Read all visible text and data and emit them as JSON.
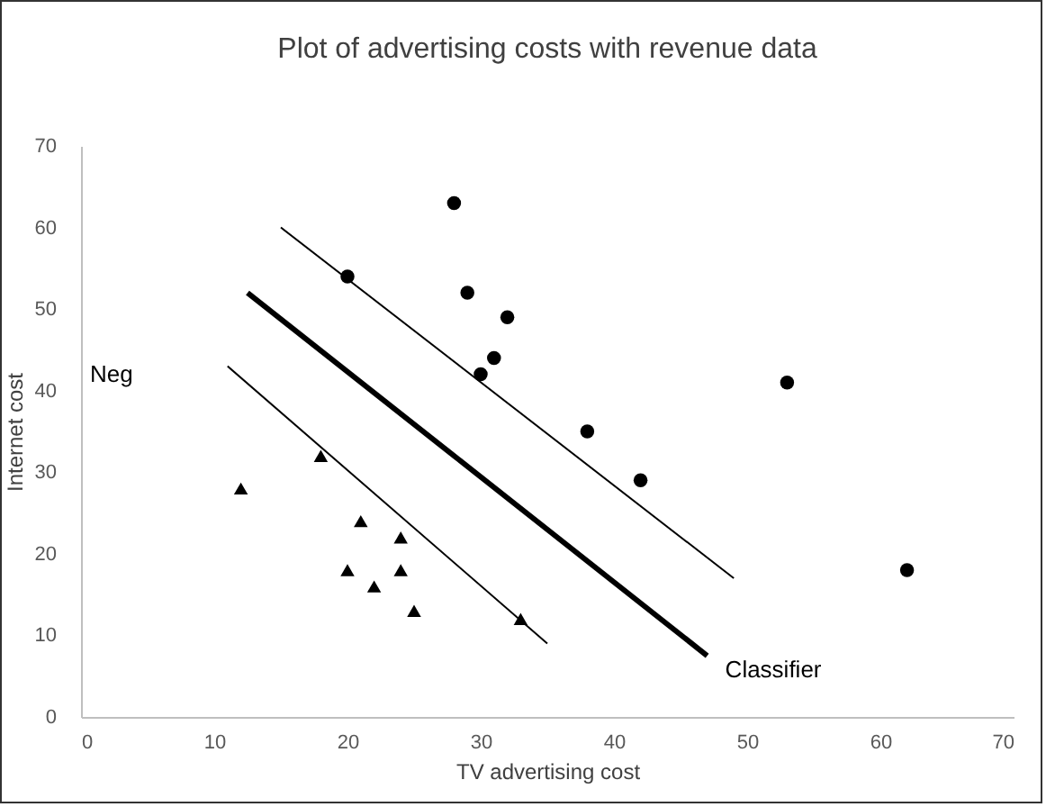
{
  "chart_data": {
    "type": "scatter",
    "title": "Plot of advertising costs with revenue data",
    "xlabel": "TV advertising cost",
    "ylabel": "Internet cost",
    "xlim": [
      0,
      70
    ],
    "xticks": [
      0,
      10,
      20,
      30,
      40,
      50,
      60,
      70
    ],
    "ylim": [
      0,
      70
    ],
    "yticks": [
      0,
      10,
      20,
      30,
      40,
      50,
      60,
      70
    ],
    "grid": false,
    "series": [
      {
        "marker": "circle",
        "color": "#000000",
        "x": [
          28,
          20,
          29,
          32,
          31,
          30,
          38,
          42,
          53,
          62
        ],
        "values": [
          63,
          54,
          52,
          49,
          44,
          42,
          35,
          29,
          41,
          18
        ]
      },
      {
        "marker": "triangle",
        "color": "#000000",
        "x": [
          12,
          18,
          21,
          20,
          22,
          24,
          24,
          25,
          33
        ],
        "values": [
          28,
          32,
          24,
          18,
          16,
          22,
          18,
          13,
          12
        ]
      },
      {
        "type": "line",
        "marker": "none",
        "color": "#000000",
        "x": [
          15,
          49
        ],
        "values": [
          60,
          17
        ]
      },
      {
        "type": "line",
        "marker": "none",
        "color": "#000000",
        "x": [
          12.5,
          47
        ],
        "values": [
          52,
          7.5
        ]
      },
      {
        "type": "line",
        "marker": "none",
        "color": "#000000",
        "x": [
          11,
          35
        ],
        "values": [
          43,
          9
        ]
      }
    ],
    "annotations": [
      "Neg",
      {
        "text": "Classifier",
        "x": 47,
        "y": 7.5
      }
    ]
  }
}
